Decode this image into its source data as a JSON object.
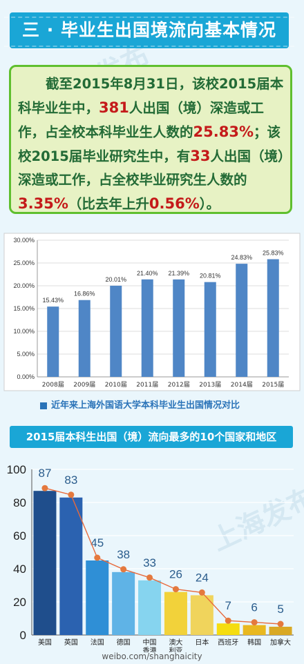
{
  "banner": {
    "title": "三 · 毕业生出国境流向基本情况"
  },
  "summary": {
    "p1": "截至2015年8月31日，该校2015届本科毕业生中，",
    "n1": "381",
    "p2": "人出国（境）深造或工作，占全校本科毕业生人数的",
    "n2": "25.83%",
    "p3": "；该校2015届毕业研究生中，有",
    "n3": "33",
    "p4": "人出国（境）深造或工作，占全校毕业研究生人数的",
    "n4": "3.35%",
    "p5": "（比去年上升",
    "n5": "0.56%",
    "p6": "）。"
  },
  "footer": {
    "text": "weibo.com/shanghaicity"
  },
  "colors": {
    "bar1": "#4f86c6",
    "bar2": [
      "#1f4e8c",
      "#2b62b0",
      "#2f8fd6",
      "#5fb3e6",
      "#86d4ef",
      "#f2d23a",
      "#f0d45c",
      "#f5dd10",
      "#e9b820",
      "#d9a925"
    ],
    "line": "#e86a3c",
    "dot": "#e4793e"
  },
  "chart_data": [
    {
      "type": "bar",
      "categories": [
        "2008届",
        "2009届",
        "2010届",
        "2011届",
        "2012届",
        "2013届",
        "2014届",
        "2015届"
      ],
      "values": [
        15.43,
        16.86,
        20.01,
        21.4,
        21.39,
        20.81,
        24.83,
        25.83
      ],
      "labels": [
        "15.43%",
        "16.86%",
        "20.01%",
        "21.40%",
        "21.39%",
        "20.81%",
        "24.83%",
        "25.83%"
      ],
      "yticks": [
        "0.00%",
        "5.00%",
        "10.00%",
        "15.00%",
        "20.00%",
        "25.00%",
        "30.00%"
      ],
      "ylim": [
        0,
        30
      ],
      "legend": "近年来上海外国语大学本科毕业生出国情况对比",
      "grid": true
    },
    {
      "type": "bar",
      "title": "2015届本科生出国（境）流向最多的10个国家和地区",
      "categories": [
        "美国",
        "英国",
        "法国",
        "德国",
        "中国香港",
        "澳大利亚",
        "日本",
        "西班牙",
        "韩国",
        "加拿大"
      ],
      "category_lines": [
        [
          "美国"
        ],
        [
          "英国"
        ],
        [
          "法国"
        ],
        [
          "德国"
        ],
        [
          "中国",
          "香港"
        ],
        [
          "澳大",
          "利亚"
        ],
        [
          "日本"
        ],
        [
          "西班牙"
        ],
        [
          "韩国"
        ],
        [
          "加拿大"
        ]
      ],
      "values": [
        87,
        83,
        45,
        38,
        33,
        26,
        24,
        7,
        6,
        5
      ],
      "yticks": [
        "0",
        "20",
        "40",
        "60",
        "80",
        "100"
      ],
      "ylim": [
        0,
        100
      ],
      "overlay": "line"
    }
  ]
}
